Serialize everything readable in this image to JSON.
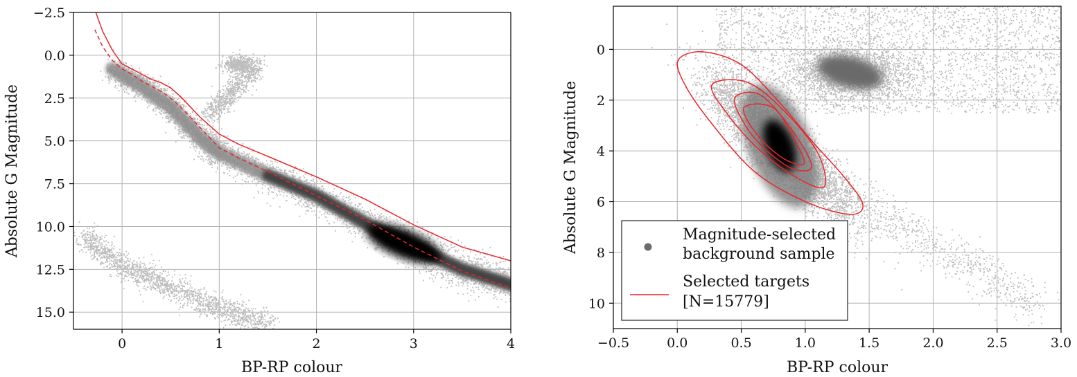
{
  "chart_data": [
    {
      "type": "scatter",
      "xlabel": "BP-RP colour",
      "ylabel": "Absolute G Magnitude",
      "xlim": [
        -0.5,
        4.0
      ],
      "ylim": [
        16.0,
        -2.5
      ],
      "y_inverted": true,
      "grid": true,
      "xticks": [
        0,
        1,
        2,
        3,
        4
      ],
      "xtick_labels": [
        "0",
        "1",
        "2",
        "3",
        "4"
      ],
      "yticks": [
        -2.5,
        0.0,
        2.5,
        5.0,
        7.5,
        10.0,
        12.5,
        15.0
      ],
      "ytick_labels": [
        "−2.5",
        "0.0",
        "2.5",
        "5.0",
        "7.5",
        "10.0",
        "12.5",
        "15.0"
      ],
      "density": {
        "colormap": "gray",
        "main_sequence": [
          [
            -0.1,
            0.8
          ],
          [
            0.2,
            1.8
          ],
          [
            0.5,
            3.0
          ],
          [
            0.8,
            4.8
          ],
          [
            1.0,
            5.7
          ],
          [
            1.5,
            7.0
          ],
          [
            2.0,
            8.2
          ],
          [
            2.5,
            9.8
          ],
          [
            3.0,
            11.2
          ],
          [
            3.5,
            12.5
          ],
          [
            4.0,
            13.4
          ]
        ],
        "peak": [
          2.9,
          11.0
        ],
        "white_dwarf_sequence": [
          [
            -0.4,
            10.5
          ],
          [
            0.0,
            12.3
          ],
          [
            0.5,
            13.5
          ],
          [
            1.0,
            14.8
          ],
          [
            1.5,
            15.6
          ]
        ],
        "red_clump": [
          1.2,
          0.5
        ]
      },
      "series": [
        {
          "line": "solid",
          "color": "#e8262a",
          "x": [
            -0.27,
            -0.2,
            -0.1,
            0.0,
            0.1,
            0.2,
            0.3,
            0.4,
            0.5,
            0.6,
            0.7,
            0.8,
            0.9,
            1.0,
            1.2,
            1.5,
            2.0,
            2.5,
            3.0,
            3.5,
            4.0
          ],
          "y": [
            -2.5,
            -1.4,
            -0.3,
            0.5,
            0.8,
            1.1,
            1.4,
            1.6,
            1.9,
            2.4,
            3.0,
            3.6,
            4.1,
            4.6,
            5.2,
            5.9,
            7.1,
            8.4,
            9.9,
            11.2,
            12.0
          ]
        },
        {
          "line": "dashed",
          "color": "#e8262a",
          "x": [
            -0.28,
            -0.2,
            -0.1,
            0.0,
            0.1,
            0.2,
            0.3,
            0.4,
            0.5,
            0.6,
            0.7,
            0.8,
            0.9,
            1.0,
            1.2,
            1.5,
            2.0,
            2.5,
            3.0,
            3.5,
            4.0
          ],
          "y": [
            -1.5,
            -0.5,
            0.3,
            0.8,
            1.1,
            1.5,
            1.8,
            2.1,
            2.5,
            3.0,
            3.6,
            4.2,
            4.8,
            5.4,
            6.0,
            6.8,
            8.2,
            9.6,
            11.2,
            12.6,
            13.6
          ]
        }
      ]
    },
    {
      "type": "scatter",
      "xlabel": "BP-RP colour",
      "ylabel": "Absolute G Magnitude",
      "xlim": [
        -0.5,
        3.0
      ],
      "ylim": [
        11.0,
        -1.7
      ],
      "y_inverted": true,
      "grid": true,
      "xticks": [
        -0.5,
        0.0,
        0.5,
        1.0,
        1.5,
        2.0,
        2.5,
        3.0
      ],
      "xtick_labels": [
        "−0.5",
        "0.0",
        "0.5",
        "1.0",
        "1.5",
        "2.0",
        "2.5",
        "3.0"
      ],
      "yticks": [
        0,
        2,
        4,
        6,
        8,
        10
      ],
      "ytick_labels": [
        "0",
        "2",
        "4",
        "6",
        "8",
        "10"
      ],
      "density": {
        "colormap": "gray",
        "peak": [
          0.8,
          3.8
        ],
        "red_clump": [
          1.35,
          0.9
        ]
      },
      "contours": {
        "color": "#e8262a",
        "levels": [
          [
            [
              0.01,
              0.4
            ],
            [
              0.2,
              0.1
            ],
            [
              0.5,
              0.6
            ],
            [
              0.8,
              2.1
            ],
            [
              1.05,
              3.6
            ],
            [
              1.3,
              5.0
            ],
            [
              1.45,
              6.1
            ],
            [
              1.35,
              6.5
            ],
            [
              1.0,
              6.0
            ],
            [
              0.6,
              4.8
            ],
            [
              0.25,
              2.8
            ],
            [
              0.05,
              1.3
            ]
          ],
          [
            [
              0.27,
              1.4
            ],
            [
              0.55,
              1.3
            ],
            [
              0.85,
              2.5
            ],
            [
              1.1,
              4.1
            ],
            [
              1.15,
              5.4
            ],
            [
              0.95,
              5.1
            ],
            [
              0.65,
              4.0
            ],
            [
              0.4,
              2.6
            ]
          ],
          [
            [
              0.45,
              1.9
            ],
            [
              0.65,
              1.8
            ],
            [
              0.9,
              3.2
            ],
            [
              1.05,
              4.6
            ],
            [
              0.9,
              4.7
            ],
            [
              0.68,
              3.9
            ],
            [
              0.52,
              2.9
            ]
          ],
          [
            [
              0.52,
              2.3
            ],
            [
              0.75,
              2.3
            ],
            [
              0.92,
              3.6
            ],
            [
              0.99,
              4.5
            ],
            [
              0.83,
              4.3
            ],
            [
              0.63,
              3.4
            ]
          ]
        ]
      },
      "legend": {
        "placement": "lower-left",
        "entries": [
          {
            "marker": "dot",
            "color": "#6b6b6b",
            "label_lines": [
              "Magnitude-selected",
              "background sample"
            ]
          },
          {
            "marker": "line",
            "color": "#e8262a",
            "label_lines": [
              "Selected targets",
              "[N=15779]"
            ]
          }
        ]
      }
    }
  ]
}
